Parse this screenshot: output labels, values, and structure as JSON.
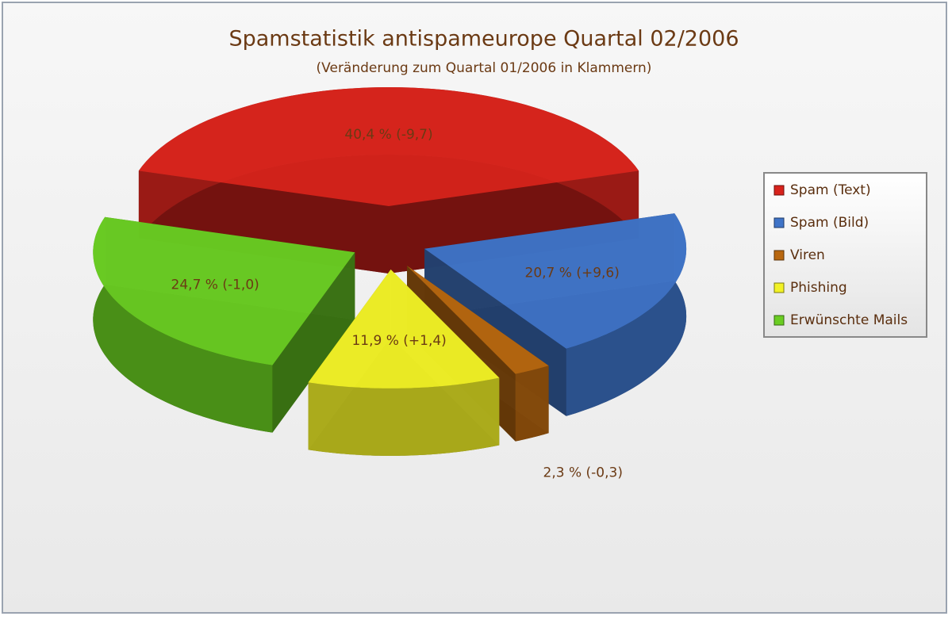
{
  "chart_data": {
    "type": "pie",
    "title": "Spamstatistik antispameurope Quartal 02/2006",
    "subtitle": "(Veränderung zum Quartal 01/2006 in Klammern)",
    "categories": [
      "Spam (Text)",
      "Spam (Bild)",
      "Viren",
      "Phishing",
      "Erwünschte Mails"
    ],
    "values": [
      40.4,
      20.7,
      2.3,
      11.9,
      24.7
    ],
    "value_labels": [
      "40,4 % (-9,7)",
      "20,7 % (+9,6)",
      "2,3 % (-0,3)",
      "11,9 % (+1,4)",
      "24,7 % (-1,0)"
    ],
    "colors": [
      "#d8231c",
      "#3f74c8",
      "#b8670f",
      "#f2f226",
      "#6acd22"
    ],
    "legend": "right"
  }
}
